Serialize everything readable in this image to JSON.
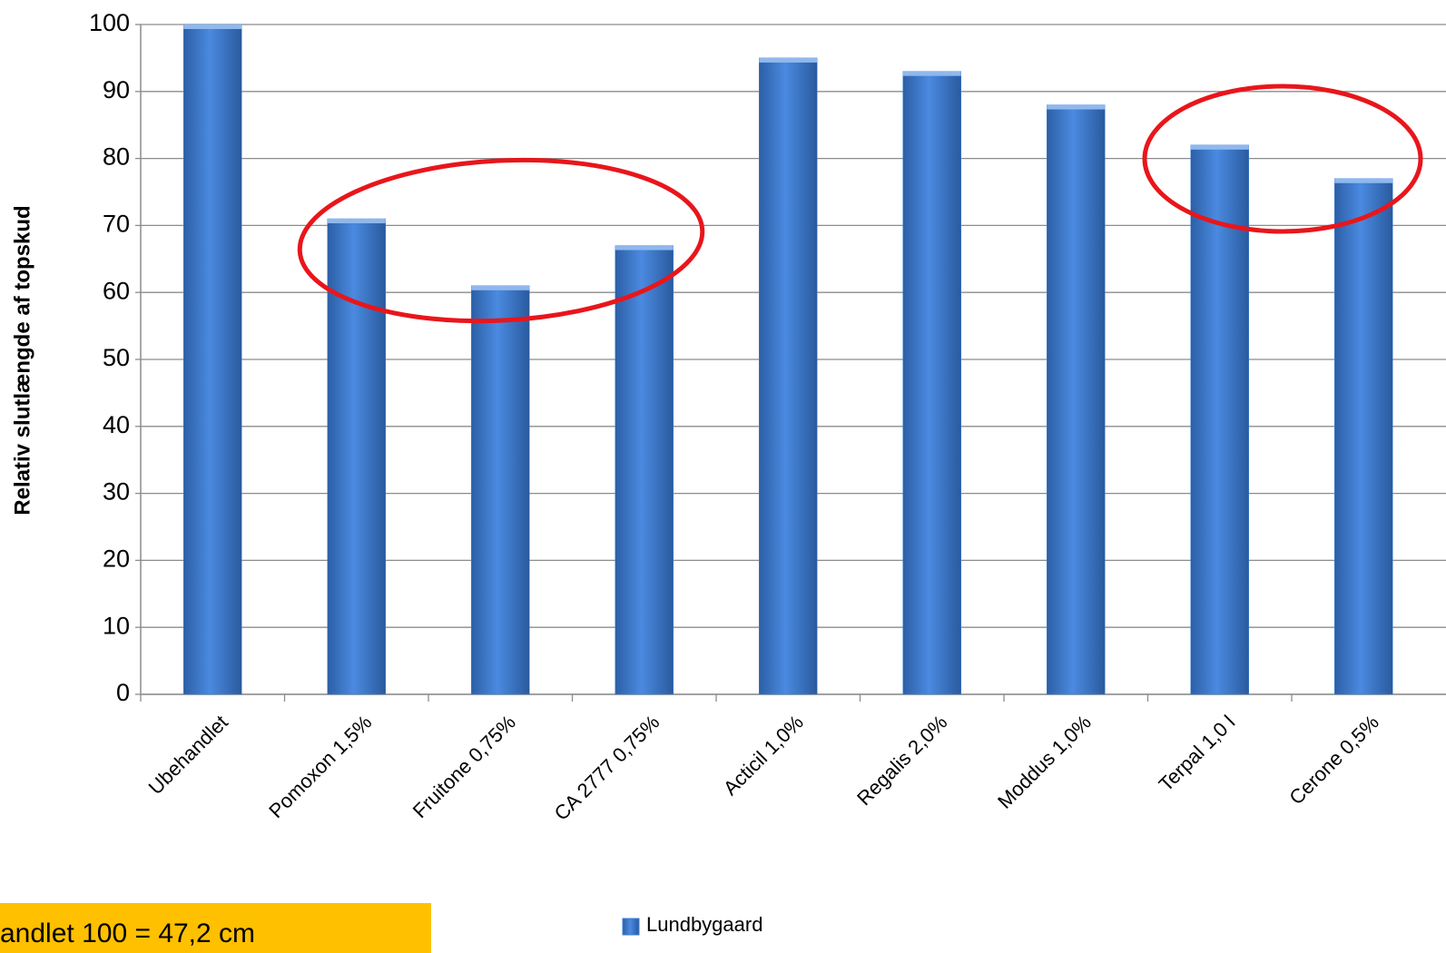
{
  "chart_data": {
    "type": "bar",
    "y_label": "Relativ slutlængde af topskud",
    "categories": [
      "Ubehandlet",
      "Pomoxon 1,5%",
      "Fruitone 0,75%",
      "CA 2777 0,75%",
      "Acticil 1,0%",
      "Regalis 2,0%",
      "Moddus 1,0%",
      "Terpal 1,0 l",
      "Cerone 0,5%"
    ],
    "series": [
      {
        "name": "Lundbygaard",
        "color": "#3d7fd6",
        "values": [
          100,
          71,
          61,
          67,
          95,
          93,
          88,
          82,
          77
        ]
      }
    ],
    "ylim": [
      0,
      100
    ],
    "yticks": [
      0,
      10,
      20,
      30,
      40,
      50,
      60,
      70,
      80,
      90,
      100
    ],
    "grid": true,
    "annotation": "andlet 100 = 47,2 cm",
    "legend": "bottom"
  }
}
